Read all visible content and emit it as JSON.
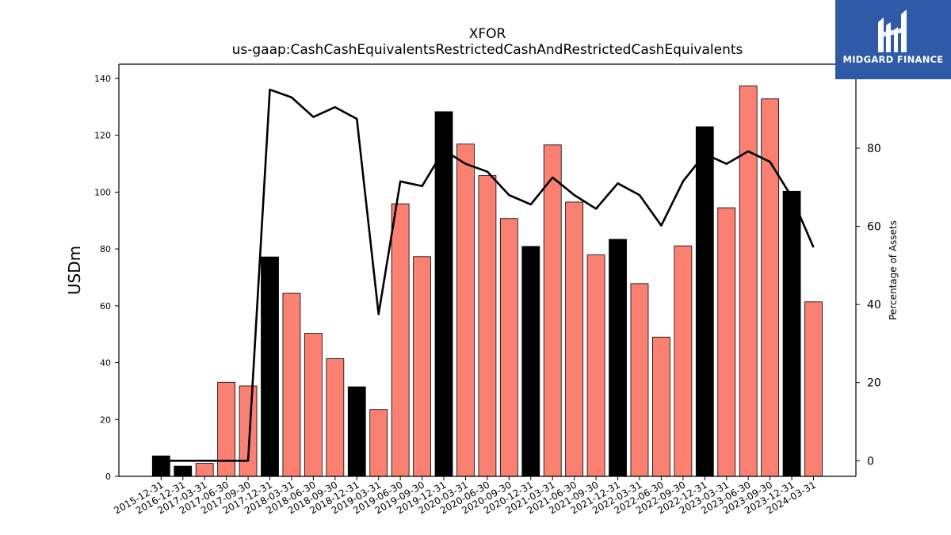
{
  "chart_data": {
    "type": "bar",
    "title": "XFOR",
    "subtitle": "us-gaap:CashCashEquivalentsRestrictedCashAndRestrictedCashEquivalents",
    "ylabel": "USDm",
    "y2label": "Percentage of Assets",
    "ylim": [
      0,
      145
    ],
    "y2lim": [
      -4,
      101.5
    ],
    "yticks": [
      0,
      20,
      40,
      60,
      80,
      100,
      120,
      140
    ],
    "y2ticks": [
      0,
      20,
      40,
      60,
      80
    ],
    "categories": [
      "2015-12-31",
      "2016-12-31",
      "2017-03-31",
      "2017-06-30",
      "2017-09-30",
      "2017-12-31",
      "2018-03-31",
      "2018-06-30",
      "2018-09-30",
      "2018-12-31",
      "2019-03-31",
      "2019-06-30",
      "2019-09-30",
      "2019-12-31",
      "2020-03-31",
      "2020-06-30",
      "2020-09-30",
      "2020-12-31",
      "2021-03-31",
      "2021-06-30",
      "2021-09-30",
      "2021-12-31",
      "2022-03-31",
      "2022-06-30",
      "2022-09-30",
      "2022-12-31",
      "2023-03-31",
      "2023-06-30",
      "2023-09-30",
      "2023-12-31",
      "2024-03-31"
    ],
    "series": [
      {
        "type": "bar",
        "values": [
          7.2,
          3.6,
          4.6,
          33.1,
          31.8,
          77.2,
          64.4,
          50.3,
          41.4,
          31.5,
          23.5,
          95.9,
          77.3,
          128.3,
          116.9,
          105.8,
          90.7,
          80.9,
          116.6,
          96.5,
          77.9,
          83.4,
          67.8,
          49.0,
          81.1,
          123.0,
          94.5,
          137.4,
          132.8,
          100.3,
          61.4
        ],
        "annual_color": "#000000",
        "quarter_color": "#fa8072"
      },
      {
        "type": "line",
        "axis": "right",
        "color": "#000000",
        "values": [
          0,
          0,
          0,
          0,
          0,
          95,
          93,
          88,
          90.5,
          87.5,
          37.5,
          71.5,
          70.3,
          79.5,
          76,
          74,
          68,
          65.6,
          72.5,
          68,
          64.5,
          71,
          68,
          60.2,
          71.5,
          78.5,
          76,
          79.2,
          76.5,
          67.5,
          54.6
        ]
      }
    ],
    "grid": false
  },
  "logo": {
    "text": "MIDGARD FINANCE"
  }
}
